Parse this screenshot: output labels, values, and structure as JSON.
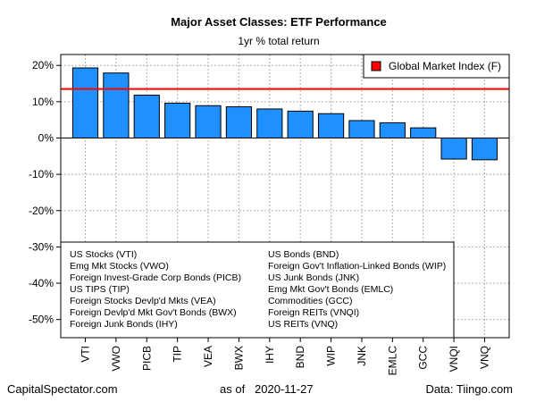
{
  "chart_data": {
    "type": "bar",
    "title": "Major Asset Classes: ETF Performance",
    "subtitle": "1yr % total return",
    "categories": [
      "VTI",
      "VWO",
      "PICB",
      "TIP",
      "VEA",
      "BWX",
      "IHY",
      "BND",
      "WIP",
      "JNK",
      "EMLC",
      "GCC",
      "VNQI",
      "VNQ"
    ],
    "values": [
      19.3,
      17.9,
      11.8,
      9.6,
      8.9,
      8.6,
      8.0,
      7.4,
      6.7,
      4.8,
      4.2,
      2.8,
      -5.8,
      -6.0
    ],
    "bar_color": "#1e90ff",
    "reference_line": {
      "name": "Global Market Index (F)",
      "value": 13.5,
      "color": "#ff0000"
    },
    "ylim": [
      -55,
      23
    ],
    "yticks": [
      20,
      10,
      0,
      -10,
      -20,
      -30,
      -40,
      -50
    ],
    "ytick_labels": [
      "20%",
      "10%",
      "0%",
      "-10%",
      "-20%",
      "-30%",
      "-40%",
      "-50%"
    ],
    "grid": true,
    "legend_position": "top-right",
    "key_legend": {
      "col1": [
        "US Stocks (VTI)",
        "Emg Mkt Stocks (VWO)",
        "Foreign Invest-Grade Corp Bonds (PICB)",
        "US TIPS (TIP)",
        "Foreign Stocks Devlp'd Mkts (VEA)",
        "Foreign Devlp'd Mkt Gov't Bonds (BWX)",
        "Foreign Junk Bonds (IHY)"
      ],
      "col2": [
        "US Bonds (BND)",
        "Foreign Gov't Inflation-Linked Bonds (WIP)",
        "US Junk Bonds (JNK)",
        "Emg Mkt Gov't Bonds (EMLC)",
        "Commodities (GCC)",
        "Foreign REITs (VNQI)",
        "US REITs (VNQ)"
      ]
    }
  },
  "footer": {
    "left": "CapitalSpectator.com",
    "as_of_label": "as of",
    "as_of_date": "2020-11-27",
    "right": "Data: Tiingo.com"
  }
}
